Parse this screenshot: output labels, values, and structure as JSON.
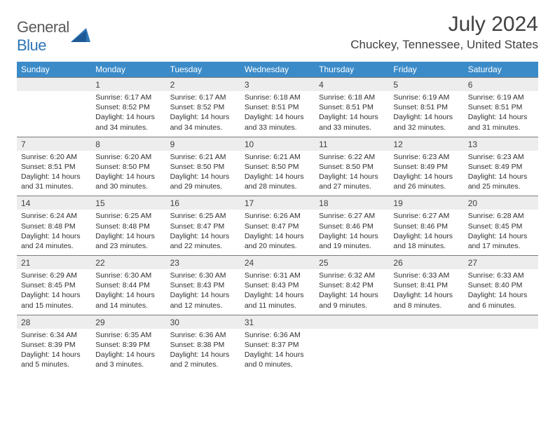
{
  "logo": {
    "part1": "General",
    "part2": "Blue"
  },
  "title": "July 2024",
  "location": "Chuckey, Tennessee, United States",
  "colors": {
    "header_bg": "#3b8bc9",
    "header_text": "#ffffff",
    "daynum_bg": "#ededed",
    "daynum_border": "#7a7a7a",
    "body_bg": "#ffffff",
    "text": "#303030",
    "title_text": "#404040",
    "logo_gray": "#5a5a5a",
    "logo_blue": "#2e75b6"
  },
  "typography": {
    "title_fontsize": 30,
    "location_fontsize": 17,
    "dow_fontsize": 12,
    "daynum_fontsize": 12,
    "body_fontsize": 10.5
  },
  "daysOfWeek": [
    "Sunday",
    "Monday",
    "Tuesday",
    "Wednesday",
    "Thursday",
    "Friday",
    "Saturday"
  ],
  "weeks": [
    {
      "nums": [
        "",
        "1",
        "2",
        "3",
        "4",
        "5",
        "6"
      ],
      "cells": [
        {},
        {
          "sunrise": "Sunrise: 6:17 AM",
          "sunset": "Sunset: 8:52 PM",
          "dl1": "Daylight: 14 hours",
          "dl2": "and 34 minutes."
        },
        {
          "sunrise": "Sunrise: 6:17 AM",
          "sunset": "Sunset: 8:52 PM",
          "dl1": "Daylight: 14 hours",
          "dl2": "and 34 minutes."
        },
        {
          "sunrise": "Sunrise: 6:18 AM",
          "sunset": "Sunset: 8:51 PM",
          "dl1": "Daylight: 14 hours",
          "dl2": "and 33 minutes."
        },
        {
          "sunrise": "Sunrise: 6:18 AM",
          "sunset": "Sunset: 8:51 PM",
          "dl1": "Daylight: 14 hours",
          "dl2": "and 33 minutes."
        },
        {
          "sunrise": "Sunrise: 6:19 AM",
          "sunset": "Sunset: 8:51 PM",
          "dl1": "Daylight: 14 hours",
          "dl2": "and 32 minutes."
        },
        {
          "sunrise": "Sunrise: 6:19 AM",
          "sunset": "Sunset: 8:51 PM",
          "dl1": "Daylight: 14 hours",
          "dl2": "and 31 minutes."
        }
      ]
    },
    {
      "nums": [
        "7",
        "8",
        "9",
        "10",
        "11",
        "12",
        "13"
      ],
      "cells": [
        {
          "sunrise": "Sunrise: 6:20 AM",
          "sunset": "Sunset: 8:51 PM",
          "dl1": "Daylight: 14 hours",
          "dl2": "and 31 minutes."
        },
        {
          "sunrise": "Sunrise: 6:20 AM",
          "sunset": "Sunset: 8:50 PM",
          "dl1": "Daylight: 14 hours",
          "dl2": "and 30 minutes."
        },
        {
          "sunrise": "Sunrise: 6:21 AM",
          "sunset": "Sunset: 8:50 PM",
          "dl1": "Daylight: 14 hours",
          "dl2": "and 29 minutes."
        },
        {
          "sunrise": "Sunrise: 6:21 AM",
          "sunset": "Sunset: 8:50 PM",
          "dl1": "Daylight: 14 hours",
          "dl2": "and 28 minutes."
        },
        {
          "sunrise": "Sunrise: 6:22 AM",
          "sunset": "Sunset: 8:50 PM",
          "dl1": "Daylight: 14 hours",
          "dl2": "and 27 minutes."
        },
        {
          "sunrise": "Sunrise: 6:23 AM",
          "sunset": "Sunset: 8:49 PM",
          "dl1": "Daylight: 14 hours",
          "dl2": "and 26 minutes."
        },
        {
          "sunrise": "Sunrise: 6:23 AM",
          "sunset": "Sunset: 8:49 PM",
          "dl1": "Daylight: 14 hours",
          "dl2": "and 25 minutes."
        }
      ]
    },
    {
      "nums": [
        "14",
        "15",
        "16",
        "17",
        "18",
        "19",
        "20"
      ],
      "cells": [
        {
          "sunrise": "Sunrise: 6:24 AM",
          "sunset": "Sunset: 8:48 PM",
          "dl1": "Daylight: 14 hours",
          "dl2": "and 24 minutes."
        },
        {
          "sunrise": "Sunrise: 6:25 AM",
          "sunset": "Sunset: 8:48 PM",
          "dl1": "Daylight: 14 hours",
          "dl2": "and 23 minutes."
        },
        {
          "sunrise": "Sunrise: 6:25 AM",
          "sunset": "Sunset: 8:47 PM",
          "dl1": "Daylight: 14 hours",
          "dl2": "and 22 minutes."
        },
        {
          "sunrise": "Sunrise: 6:26 AM",
          "sunset": "Sunset: 8:47 PM",
          "dl1": "Daylight: 14 hours",
          "dl2": "and 20 minutes."
        },
        {
          "sunrise": "Sunrise: 6:27 AM",
          "sunset": "Sunset: 8:46 PM",
          "dl1": "Daylight: 14 hours",
          "dl2": "and 19 minutes."
        },
        {
          "sunrise": "Sunrise: 6:27 AM",
          "sunset": "Sunset: 8:46 PM",
          "dl1": "Daylight: 14 hours",
          "dl2": "and 18 minutes."
        },
        {
          "sunrise": "Sunrise: 6:28 AM",
          "sunset": "Sunset: 8:45 PM",
          "dl1": "Daylight: 14 hours",
          "dl2": "and 17 minutes."
        }
      ]
    },
    {
      "nums": [
        "21",
        "22",
        "23",
        "24",
        "25",
        "26",
        "27"
      ],
      "cells": [
        {
          "sunrise": "Sunrise: 6:29 AM",
          "sunset": "Sunset: 8:45 PM",
          "dl1": "Daylight: 14 hours",
          "dl2": "and 15 minutes."
        },
        {
          "sunrise": "Sunrise: 6:30 AM",
          "sunset": "Sunset: 8:44 PM",
          "dl1": "Daylight: 14 hours",
          "dl2": "and 14 minutes."
        },
        {
          "sunrise": "Sunrise: 6:30 AM",
          "sunset": "Sunset: 8:43 PM",
          "dl1": "Daylight: 14 hours",
          "dl2": "and 12 minutes."
        },
        {
          "sunrise": "Sunrise: 6:31 AM",
          "sunset": "Sunset: 8:43 PM",
          "dl1": "Daylight: 14 hours",
          "dl2": "and 11 minutes."
        },
        {
          "sunrise": "Sunrise: 6:32 AM",
          "sunset": "Sunset: 8:42 PM",
          "dl1": "Daylight: 14 hours",
          "dl2": "and 9 minutes."
        },
        {
          "sunrise": "Sunrise: 6:33 AM",
          "sunset": "Sunset: 8:41 PM",
          "dl1": "Daylight: 14 hours",
          "dl2": "and 8 minutes."
        },
        {
          "sunrise": "Sunrise: 6:33 AM",
          "sunset": "Sunset: 8:40 PM",
          "dl1": "Daylight: 14 hours",
          "dl2": "and 6 minutes."
        }
      ]
    },
    {
      "nums": [
        "28",
        "29",
        "30",
        "31",
        "",
        "",
        ""
      ],
      "cells": [
        {
          "sunrise": "Sunrise: 6:34 AM",
          "sunset": "Sunset: 8:39 PM",
          "dl1": "Daylight: 14 hours",
          "dl2": "and 5 minutes."
        },
        {
          "sunrise": "Sunrise: 6:35 AM",
          "sunset": "Sunset: 8:39 PM",
          "dl1": "Daylight: 14 hours",
          "dl2": "and 3 minutes."
        },
        {
          "sunrise": "Sunrise: 6:36 AM",
          "sunset": "Sunset: 8:38 PM",
          "dl1": "Daylight: 14 hours",
          "dl2": "and 2 minutes."
        },
        {
          "sunrise": "Sunrise: 6:36 AM",
          "sunset": "Sunset: 8:37 PM",
          "dl1": "Daylight: 14 hours",
          "dl2": "and 0 minutes."
        },
        {},
        {},
        {}
      ]
    }
  ]
}
